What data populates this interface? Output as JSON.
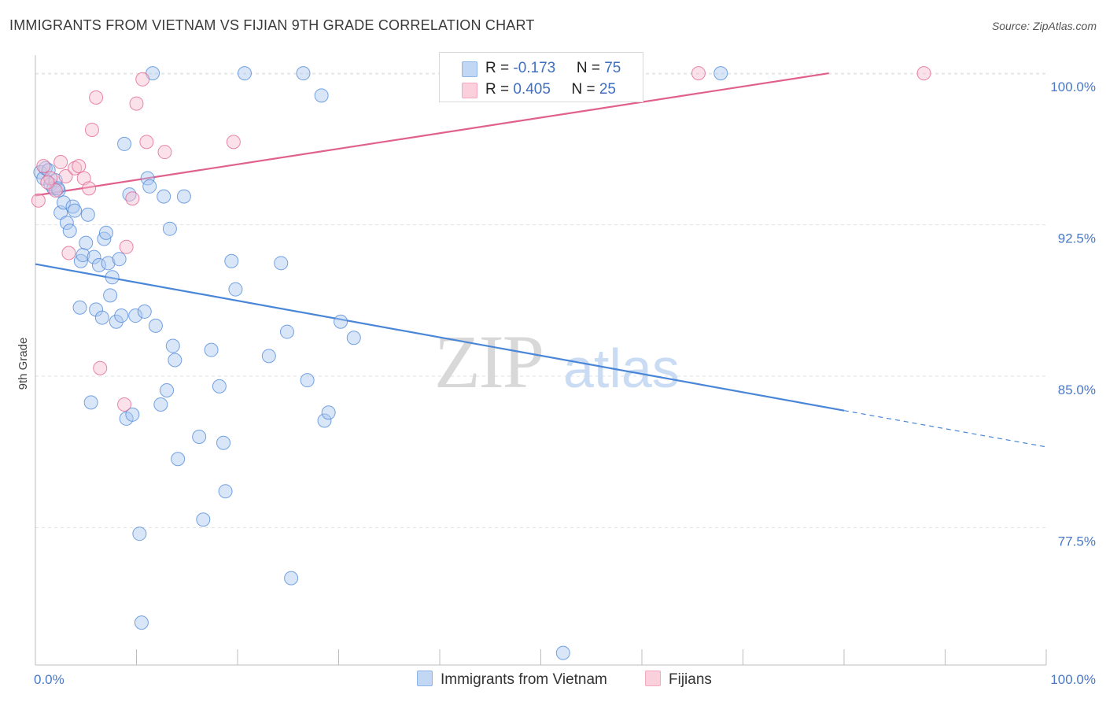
{
  "title": "IMMIGRANTS FROM VIETNAM VS FIJIAN 9TH GRADE CORRELATION CHART",
  "source": "Source: ZipAtlas.com",
  "watermark": {
    "zip": "ZIP",
    "atlas": "atlas"
  },
  "legend": {
    "rows": [
      {
        "r_label": "R = ",
        "r_value": "-0.173",
        "n_label": "N = ",
        "n_value": "75",
        "color": "#8fb4e8"
      },
      {
        "r_label": "R = ",
        "r_value": "0.405",
        "n_label": "N = ",
        "n_value": "25",
        "color": "#f4a7bf"
      }
    ]
  },
  "bottom_legend": [
    {
      "label": "Immigrants from Vietnam",
      "color": "#8fb4e8"
    },
    {
      "label": "Fijians",
      "color": "#f4a7bf"
    }
  ],
  "chart_data": {
    "type": "scatter",
    "title": "IMMIGRANTS FROM VIETNAM VS FIJIAN 9TH GRADE CORRELATION CHART",
    "xlabel": "",
    "ylabel": "9th Grade",
    "xlim": [
      0,
      100
    ],
    "ylim": [
      70.7,
      100.9
    ],
    "x_tick_labels": [
      {
        "value": 0,
        "label": "0.0%"
      },
      {
        "value": 100,
        "label": "100.0%"
      }
    ],
    "y_tick_labels": [
      {
        "value": 100,
        "label": "100.0%"
      },
      {
        "value": 92.5,
        "label": "92.5%"
      },
      {
        "value": 85,
        "label": "85.0%"
      },
      {
        "value": 77.5,
        "label": "77.5%"
      }
    ],
    "grid": true,
    "series": [
      {
        "name": "Immigrants from Vietnam",
        "color": "#4a86d8",
        "fill": "#aac8ef",
        "R": -0.173,
        "N": 75,
        "trend": {
          "x0": 0,
          "y0": 90.55,
          "x1": 80,
          "y1": 83.3,
          "dash_to_x": 100,
          "dash_to_y": 81.5
        },
        "points": [
          [
            0.5,
            95.1
          ],
          [
            0.8,
            94.8
          ],
          [
            1.0,
            95.3
          ],
          [
            1.3,
            95.2
          ],
          [
            1.5,
            94.5
          ],
          [
            1.8,
            94.3
          ],
          [
            2.0,
            94.7
          ],
          [
            2.3,
            94.2
          ],
          [
            2.5,
            93.1
          ],
          [
            2.8,
            93.6
          ],
          [
            3.1,
            92.6
          ],
          [
            3.4,
            92.2
          ],
          [
            3.7,
            93.4
          ],
          [
            3.9,
            93.2
          ],
          [
            4.4,
            88.4
          ],
          [
            4.5,
            90.7
          ],
          [
            4.7,
            91.0
          ],
          [
            5.0,
            91.6
          ],
          [
            5.2,
            93.0
          ],
          [
            5.5,
            83.7
          ],
          [
            5.8,
            90.9
          ],
          [
            6.0,
            88.3
          ],
          [
            6.3,
            90.5
          ],
          [
            6.6,
            87.9
          ],
          [
            6.8,
            91.8
          ],
          [
            7.0,
            92.1
          ],
          [
            7.2,
            90.6
          ],
          [
            7.4,
            89.0
          ],
          [
            7.6,
            89.9
          ],
          [
            8.0,
            87.7
          ],
          [
            8.3,
            90.8
          ],
          [
            8.5,
            88.0
          ],
          [
            8.8,
            96.5
          ],
          [
            9.0,
            82.9
          ],
          [
            9.3,
            94.0
          ],
          [
            9.6,
            83.1
          ],
          [
            9.9,
            88.0
          ],
          [
            10.3,
            77.2
          ],
          [
            10.5,
            72.8
          ],
          [
            10.8,
            88.2
          ],
          [
            11.1,
            94.8
          ],
          [
            11.3,
            94.4
          ],
          [
            11.6,
            100.0
          ],
          [
            11.9,
            87.5
          ],
          [
            12.4,
            83.6
          ],
          [
            12.7,
            93.9
          ],
          [
            13.0,
            84.3
          ],
          [
            13.3,
            92.3
          ],
          [
            13.6,
            86.5
          ],
          [
            13.8,
            85.8
          ],
          [
            14.1,
            80.9
          ],
          [
            14.7,
            93.9
          ],
          [
            16.2,
            82.0
          ],
          [
            16.6,
            77.9
          ],
          [
            17.4,
            86.3
          ],
          [
            18.2,
            84.5
          ],
          [
            18.6,
            81.7
          ],
          [
            18.8,
            79.3
          ],
          [
            19.4,
            90.7
          ],
          [
            19.8,
            89.3
          ],
          [
            20.7,
            100.0
          ],
          [
            23.1,
            86.0
          ],
          [
            24.3,
            90.6
          ],
          [
            24.9,
            87.2
          ],
          [
            25.3,
            75.0
          ],
          [
            26.5,
            100.0
          ],
          [
            26.9,
            84.8
          ],
          [
            28.3,
            98.9
          ],
          [
            28.6,
            82.8
          ],
          [
            29.0,
            83.2
          ],
          [
            30.2,
            87.7
          ],
          [
            31.5,
            86.9
          ],
          [
            52.2,
            71.3
          ],
          [
            67.8,
            100.0
          ],
          [
            2.2,
            94.3
          ]
        ]
      },
      {
        "name": "Fijians",
        "color": "#e0608e",
        "fill": "#f7bed0",
        "R": 0.405,
        "N": 25,
        "trend": {
          "x0": 0,
          "y0": 93.95,
          "x1": 78.5,
          "y1": 100.0
        },
        "points": [
          [
            0.3,
            93.7
          ],
          [
            0.8,
            95.4
          ],
          [
            1.5,
            94.8
          ],
          [
            2.0,
            94.2
          ],
          [
            2.5,
            95.6
          ],
          [
            3.0,
            94.9
          ],
          [
            3.3,
            91.1
          ],
          [
            3.9,
            95.3
          ],
          [
            4.3,
            95.4
          ],
          [
            4.8,
            94.8
          ],
          [
            5.3,
            94.3
          ],
          [
            5.6,
            97.2
          ],
          [
            6.0,
            98.8
          ],
          [
            6.4,
            85.4
          ],
          [
            8.8,
            83.6
          ],
          [
            9.0,
            91.4
          ],
          [
            9.6,
            93.8
          ],
          [
            10.0,
            98.5
          ],
          [
            10.6,
            99.7
          ],
          [
            11.0,
            96.6
          ],
          [
            12.8,
            96.1
          ],
          [
            19.6,
            96.6
          ],
          [
            65.6,
            100.0
          ],
          [
            87.9,
            100.0
          ],
          [
            1.2,
            94.6
          ]
        ]
      }
    ]
  }
}
